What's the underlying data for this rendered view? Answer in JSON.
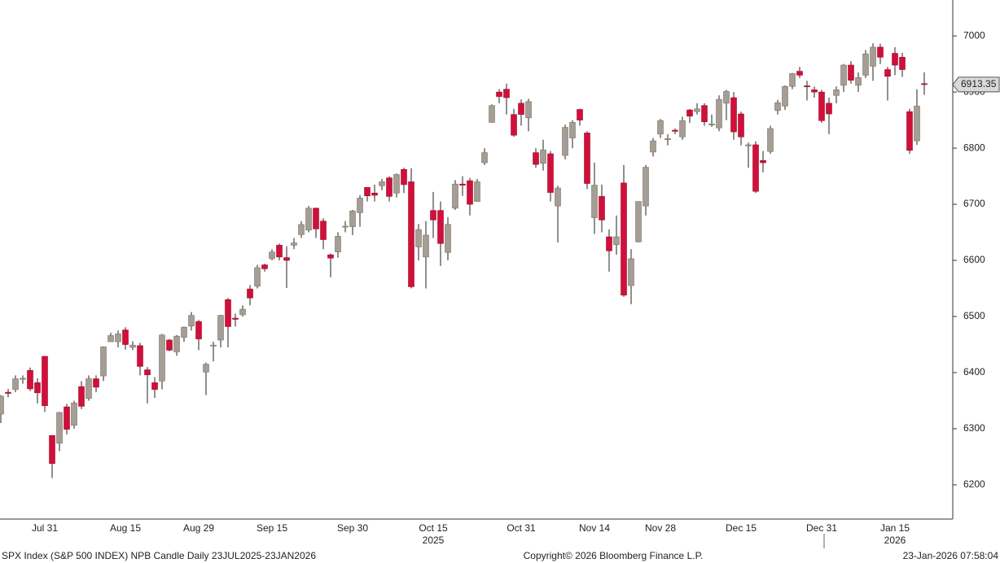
{
  "chart_data": {
    "type": "candlestick",
    "categories": [
      null,
      null,
      null,
      null,
      null,
      null,
      "Jul 31",
      null,
      null,
      null,
      null,
      null,
      null,
      null,
      null,
      null,
      null,
      "Aug 15",
      null,
      null,
      null,
      null,
      null,
      null,
      null,
      null,
      null,
      "Aug 29",
      null,
      null,
      null,
      null,
      null,
      null,
      null,
      null,
      null,
      "Sep 15",
      null,
      null,
      null,
      null,
      null,
      null,
      null,
      null,
      null,
      null,
      "Sep 30",
      null,
      null,
      null,
      null,
      null,
      null,
      null,
      null,
      null,
      null,
      "Oct 15",
      null,
      null,
      null,
      null,
      null,
      null,
      null,
      null,
      null,
      null,
      null,
      "Oct 31",
      null,
      null,
      null,
      null,
      null,
      null,
      null,
      null,
      null,
      "Nov 14",
      null,
      null,
      null,
      null,
      null,
      null,
      null,
      null,
      "Nov 28",
      null,
      null,
      null,
      null,
      null,
      null,
      null,
      null,
      null,
      null,
      "Dec 15",
      null,
      null,
      null,
      null,
      null,
      null,
      null,
      null,
      null,
      null,
      "Dec 31",
      null,
      null,
      null,
      null,
      null,
      null,
      null,
      null,
      null,
      "Jan 15",
      null,
      null,
      null,
      null,
      null
    ],
    "year_labels": [
      "2025",
      "2026"
    ],
    "ohlc": [
      [
        6326,
        6360,
        6310,
        6358
      ],
      [
        6365,
        6371,
        6356,
        6363
      ],
      [
        6370,
        6395,
        6365,
        6389
      ],
      [
        6388,
        6395,
        6380,
        6390
      ],
      [
        6404,
        6409,
        6367,
        6371
      ],
      [
        6382,
        6390,
        6345,
        6364
      ],
      [
        6429,
        6429,
        6330,
        6341
      ],
      [
        6288,
        6288,
        6212,
        6238
      ],
      [
        6274,
        6330,
        6260,
        6329
      ],
      [
        6339,
        6344,
        6290,
        6299
      ],
      [
        6306,
        6350,
        6300,
        6346
      ],
      [
        6375,
        6385,
        6335,
        6340
      ],
      [
        6354,
        6395,
        6350,
        6389
      ],
      [
        6389,
        6395,
        6365,
        6374
      ],
      [
        6394,
        6447,
        6385,
        6446
      ],
      [
        6455,
        6471,
        6455,
        6466
      ],
      [
        6455,
        6475,
        6445,
        6469
      ],
      [
        6476,
        6481,
        6441,
        6450
      ],
      [
        6445,
        6456,
        6440,
        6449
      ],
      [
        6448,
        6453,
        6395,
        6411
      ],
      [
        6405,
        6410,
        6345,
        6396
      ],
      [
        6382,
        6392,
        6355,
        6370
      ],
      [
        6385,
        6469,
        6370,
        6467
      ],
      [
        6458,
        6460,
        6438,
        6440
      ],
      [
        6437,
        6467,
        6430,
        6465
      ],
      [
        6463,
        6482,
        6455,
        6481
      ],
      [
        6483,
        6508,
        6475,
        6502
      ],
      [
        6491,
        6494,
        6440,
        6460
      ],
      [
        6401,
        6418,
        6360,
        6415
      ],
      [
        6448,
        6455,
        6420,
        6449
      ],
      [
        6458,
        6503,
        6445,
        6502
      ],
      [
        6530,
        6533,
        6445,
        6482
      ],
      [
        6497,
        6505,
        6482,
        6495
      ],
      [
        6503,
        6520,
        6500,
        6513
      ],
      [
        6549,
        6556,
        6520,
        6533
      ],
      [
        6554,
        6592,
        6550,
        6587
      ],
      [
        6592,
        6594,
        6580,
        6585
      ],
      [
        6603,
        6620,
        6600,
        6615
      ],
      [
        6627,
        6630,
        6600,
        6606
      ],
      [
        6605,
        6625,
        6551,
        6600
      ],
      [
        6627,
        6640,
        6620,
        6631
      ],
      [
        6646,
        6670,
        6640,
        6664
      ],
      [
        6654,
        6697,
        6650,
        6693
      ],
      [
        6693,
        6694,
        6640,
        6656
      ],
      [
        6670,
        6675,
        6620,
        6637
      ],
      [
        6610,
        6612,
        6570,
        6604
      ],
      [
        6615,
        6650,
        6605,
        6643
      ],
      [
        6660,
        6670,
        6650,
        6661
      ],
      [
        6660,
        6690,
        6645,
        6688
      ],
      [
        6685,
        6716,
        6660,
        6711
      ],
      [
        6730,
        6730,
        6705,
        6715
      ],
      [
        6720,
        6735,
        6705,
        6716
      ],
      [
        6733,
        6745,
        6725,
        6740
      ],
      [
        6747,
        6750,
        6705,
        6714
      ],
      [
        6720,
        6755,
        6712,
        6753
      ],
      [
        6762,
        6765,
        6720,
        6735
      ],
      [
        6740,
        6764,
        6550,
        6553
      ],
      [
        6624,
        6665,
        6600,
        6655
      ],
      [
        6606,
        6670,
        6550,
        6645
      ],
      [
        6689,
        6722,
        6640,
        6672
      ],
      [
        6689,
        6705,
        6590,
        6630
      ],
      [
        6614,
        6677,
        6600,
        6664
      ],
      [
        6693,
        6743,
        6690,
        6736
      ],
      [
        6736,
        6750,
        6715,
        6734
      ],
      [
        6742,
        6747,
        6680,
        6700
      ],
      [
        6705,
        6745,
        6705,
        6740
      ],
      [
        6774,
        6800,
        6770,
        6792
      ],
      [
        6846,
        6878,
        6845,
        6876
      ],
      [
        6900,
        6905,
        6880,
        6892
      ],
      [
        6905,
        6915,
        6860,
        6890
      ],
      [
        6860,
        6870,
        6820,
        6823
      ],
      [
        6880,
        6887,
        6840,
        6860
      ],
      [
        6854,
        6888,
        6830,
        6883
      ],
      [
        6792,
        6800,
        6765,
        6771
      ],
      [
        6773,
        6815,
        6760,
        6797
      ],
      [
        6790,
        6795,
        6705,
        6721
      ],
      [
        6697,
        6733,
        6632,
        6729
      ],
      [
        6787,
        6842,
        6780,
        6837
      ],
      [
        6818,
        6850,
        6800,
        6846
      ],
      [
        6869,
        6870,
        6840,
        6850
      ],
      [
        6827,
        6830,
        6727,
        6737
      ],
      [
        6676,
        6774,
        6647,
        6734
      ],
      [
        6714,
        6735,
        6650,
        6672
      ],
      [
        6642,
        6655,
        6580,
        6617
      ],
      [
        6628,
        6680,
        6610,
        6642
      ],
      [
        6738,
        6770,
        6535,
        6538
      ],
      [
        6555,
        6620,
        6522,
        6603
      ],
      [
        6633,
        6705,
        6632,
        6705
      ],
      [
        6697,
        6770,
        6680,
        6766
      ],
      [
        6793,
        6818,
        6785,
        6813
      ],
      [
        6825,
        6852,
        6818,
        6849
      ],
      [
        6815,
        6825,
        6805,
        6817
      ],
      [
        6832,
        6835,
        6825,
        6830
      ],
      [
        6820,
        6856,
        6815,
        6849
      ],
      [
        6868,
        6870,
        6845,
        6857
      ],
      [
        6865,
        6880,
        6860,
        6870
      ],
      [
        6876,
        6880,
        6840,
        6847
      ],
      [
        6842,
        6860,
        6838,
        6843
      ],
      [
        6836,
        6894,
        6830,
        6887
      ],
      [
        6880,
        6904,
        6850,
        6901
      ],
      [
        6890,
        6900,
        6815,
        6829
      ],
      [
        6861,
        6865,
        6805,
        6820
      ],
      [
        6804,
        6810,
        6765,
        6806
      ],
      [
        6806,
        6812,
        6720,
        6723
      ],
      [
        6778,
        6795,
        6757,
        6774
      ],
      [
        6794,
        6840,
        6790,
        6835
      ],
      [
        6867,
        6886,
        6860,
        6881
      ],
      [
        6875,
        6912,
        6868,
        6910
      ],
      [
        6910,
        6934,
        6905,
        6933
      ],
      [
        6937,
        6945,
        6925,
        6930
      ],
      [
        6911,
        6920,
        6885,
        6910
      ],
      [
        6904,
        6910,
        6890,
        6900
      ],
      [
        6900,
        6904,
        6845,
        6849
      ],
      [
        6880,
        6890,
        6825,
        6861
      ],
      [
        6894,
        6910,
        6880,
        6904
      ],
      [
        6912,
        6950,
        6900,
        6948
      ],
      [
        6948,
        6955,
        6915,
        6921
      ],
      [
        6912,
        6935,
        6900,
        6926
      ],
      [
        6930,
        6975,
        6925,
        6968
      ],
      [
        6946,
        6987,
        6920,
        6980
      ],
      [
        6980,
        6986,
        6950,
        6962
      ],
      [
        6940,
        6945,
        6885,
        6928
      ],
      [
        6969,
        6980,
        6930,
        6948
      ],
      [
        6962,
        6970,
        6927,
        6940
      ],
      [
        6865,
        6870,
        6790,
        6796
      ],
      [
        6813,
        6905,
        6806,
        6875
      ],
      [
        6915,
        6935,
        6895,
        6913.35
      ],
      null
    ],
    "up_color": "#a69e94",
    "down_color": "#d0103a",
    "last_price": 6913.35,
    "ylim": [
      6139,
      7064
    ],
    "yticks": [
      6200,
      6300,
      6400,
      6500,
      6600,
      6700,
      6800,
      6900,
      7000
    ],
    "footer": {
      "left": "SPX Index (S&P 500 INDEX) NPB Candle Daily 23JUL2025-23JAN2026",
      "center": "Copyright© 2026 Bloomberg Finance L.P.",
      "right": "23-Jan-2026 07:58:04"
    }
  }
}
